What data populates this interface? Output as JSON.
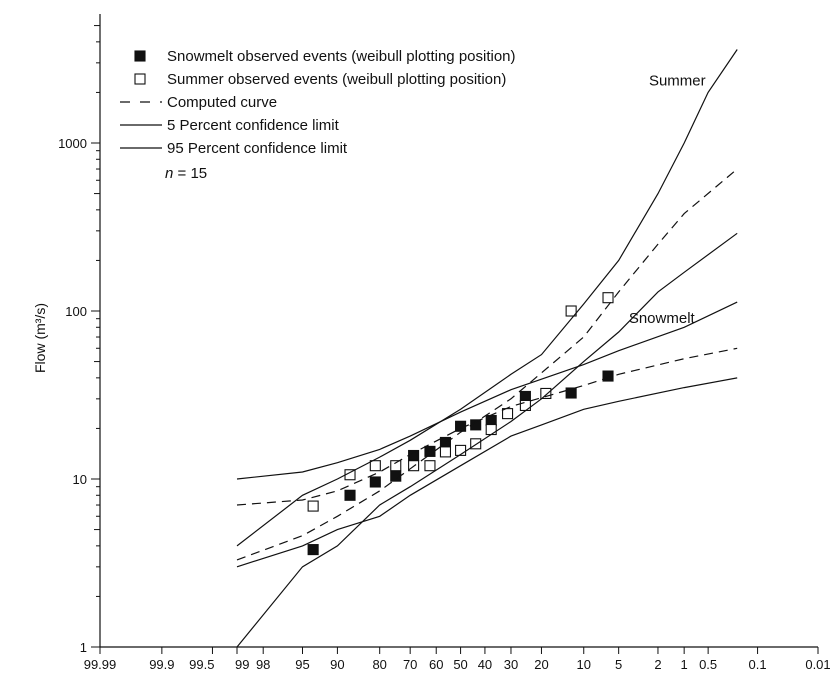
{
  "chart_data": {
    "type": "scatter",
    "title": "",
    "xlabel": "",
    "ylabel": "Flow (m³/s)",
    "y_scale": "log",
    "x_scale": "normal-probability (exceedance %)",
    "ylim": [
      1,
      5000
    ],
    "grid": false,
    "legend_position": "top-left",
    "annotation": "n = 15",
    "annotation_parts": {
      "var": "n",
      "rest": " = 15"
    },
    "y_ticks": [
      {
        "value": 1,
        "label": "1"
      },
      {
        "value": 10,
        "label": "10"
      },
      {
        "value": 100,
        "label": "100"
      },
      {
        "value": 1000,
        "label": "1000"
      }
    ],
    "x_ticks": [
      {
        "value": 99.99,
        "label": "99.99"
      },
      {
        "value": 99.9,
        "label": "99.9"
      },
      {
        "value": 99.5,
        "label": "99.5"
      },
      {
        "value": 99,
        "label": "99"
      },
      {
        "value": 98,
        "label": "98"
      },
      {
        "value": 95,
        "label": "95"
      },
      {
        "value": 90,
        "label": "90"
      },
      {
        "value": 80,
        "label": "80"
      },
      {
        "value": 70,
        "label": "70"
      },
      {
        "value": 60,
        "label": "60"
      },
      {
        "value": 50,
        "label": "50"
      },
      {
        "value": 40,
        "label": "40"
      },
      {
        "value": 30,
        "label": "30"
      },
      {
        "value": 20,
        "label": "20"
      },
      {
        "value": 10,
        "label": "10"
      },
      {
        "value": 5,
        "label": "5"
      },
      {
        "value": 2,
        "label": "2"
      },
      {
        "value": 1,
        "label": "1"
      },
      {
        "value": 0.5,
        "label": "0.5"
      },
      {
        "value": 0.1,
        "label": "0.1"
      },
      {
        "value": 0.01,
        "label": "0.01"
      }
    ],
    "legend": [
      {
        "label": "Snowmelt observed events (weibull plotting position)",
        "symbol": "filled-square"
      },
      {
        "label": "Summer observed events (weibull plotting position)",
        "symbol": "open-square"
      },
      {
        "label": "Computed curve",
        "symbol": "dashed-line"
      },
      {
        "label": "5 Percent confidence limit",
        "symbol": "solid-line"
      },
      {
        "label": "95 Percent confidence limit",
        "symbol": "solid-line"
      }
    ],
    "curve_labels": [
      {
        "text": "Summer",
        "x": 2.5,
        "y": 2200
      },
      {
        "text": "Snowmelt",
        "x": 4.0,
        "y": 85
      }
    ],
    "series": [
      {
        "name": "Snowmelt observed events (weibull plotting position)",
        "style": "filled-square",
        "x": [
          93.75,
          87.5,
          81.25,
          75,
          68.75,
          62.5,
          56.25,
          50,
          43.75,
          37.5,
          25,
          12.5,
          6.25
        ],
        "y": [
          3.8,
          8,
          9.6,
          10.4,
          13.8,
          14.6,
          16.5,
          20.6,
          21,
          22.3,
          31,
          32.5,
          41
        ]
      },
      {
        "name": "Summer observed events (weibull plotting position)",
        "style": "open-square",
        "x": [
          93.75,
          87.5,
          81.25,
          75,
          68.75,
          62.5,
          56.25,
          50,
          43.75,
          37.5,
          31.25,
          25,
          18.75,
          12.5,
          6.25
        ],
        "y": [
          6.9,
          10.6,
          12,
          12,
          12,
          12,
          14.5,
          14.8,
          16.2,
          19.7,
          24.5,
          27.4,
          32.3,
          100,
          120
        ]
      },
      {
        "name": "Snowmelt computed curve",
        "style": "dashed",
        "x": [
          99,
          95,
          90,
          80,
          70,
          50,
          30,
          10,
          5,
          1,
          0.2
        ],
        "y": [
          7,
          7.5,
          8.5,
          11,
          14,
          20,
          27,
          36,
          42,
          52,
          60
        ]
      },
      {
        "name": "Snowmelt 5 percent confidence limit",
        "style": "solid",
        "x": [
          99,
          95,
          90,
          80,
          70,
          50,
          30,
          10,
          5,
          1,
          0.2
        ],
        "y": [
          10,
          11,
          12.5,
          15,
          18,
          25,
          34,
          48,
          58,
          80,
          113
        ]
      },
      {
        "name": "Snowmelt 95 percent confidence limit",
        "style": "solid",
        "x": [
          99,
          95,
          90,
          80,
          70,
          50,
          30,
          20,
          10,
          5,
          1,
          0.2
        ],
        "y": [
          3,
          4,
          5,
          6,
          8,
          12,
          18,
          21,
          26,
          29,
          35,
          40
        ]
      },
      {
        "name": "Summer computed curve",
        "style": "dashed",
        "x": [
          99,
          95,
          90,
          80,
          70,
          50,
          30,
          10,
          5,
          2,
          1,
          0.2
        ],
        "y": [
          3.3,
          4.6,
          6,
          8.5,
          11.5,
          19,
          30,
          70,
          130,
          250,
          380,
          700
        ]
      },
      {
        "name": "Summer 5 percent confidence limit",
        "style": "solid",
        "x": [
          99,
          95,
          90,
          80,
          70,
          50,
          30,
          20,
          10,
          5,
          2,
          1,
          0.5,
          0.2
        ],
        "y": [
          4,
          8,
          10,
          13.5,
          17,
          26,
          42,
          55,
          110,
          200,
          500,
          1000,
          2000,
          3600
        ]
      },
      {
        "name": "Summer 95 percent confidence limit",
        "style": "solid",
        "x": [
          99,
          95,
          90,
          80,
          70,
          50,
          30,
          20,
          10,
          5,
          2,
          1,
          0.2
        ],
        "y": [
          1,
          3,
          4,
          7,
          9,
          14,
          22,
          30,
          50,
          75,
          130,
          170,
          290
        ]
      }
    ]
  }
}
